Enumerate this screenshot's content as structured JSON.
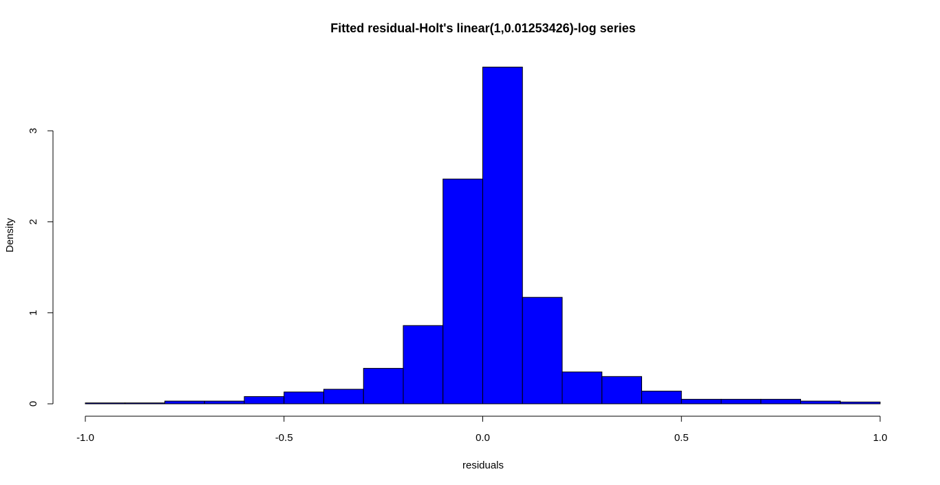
{
  "chart_data": {
    "type": "bar",
    "title": "Fitted residual-Holt's linear(1,0.01253426)-log series",
    "xlabel": "residuals",
    "ylabel": "Density",
    "xlim": [
      -1.0,
      1.0
    ],
    "ylim": [
      0,
      3.7
    ],
    "x_ticks": [
      -1.0,
      -0.5,
      0.0,
      0.5,
      1.0
    ],
    "x_tick_labels": [
      "-1.0",
      "-0.5",
      "0.0",
      "0.5",
      "1.0"
    ],
    "y_ticks": [
      0,
      1,
      2,
      3
    ],
    "y_tick_labels": [
      "0",
      "1",
      "2",
      "3"
    ],
    "bin_edges": [
      -1.0,
      -0.9,
      -0.8,
      -0.7,
      -0.6,
      -0.5,
      -0.4,
      -0.3,
      -0.2,
      -0.1,
      0.0,
      0.1,
      0.2,
      0.3,
      0.4,
      0.5,
      0.6,
      0.7,
      0.8,
      0.9,
      1.0
    ],
    "values": [
      0.01,
      0.01,
      0.03,
      0.03,
      0.08,
      0.13,
      0.16,
      0.39,
      0.86,
      2.47,
      3.7,
      1.17,
      0.35,
      0.3,
      0.14,
      0.05,
      0.05,
      0.05,
      0.03,
      0.02
    ],
    "grid": false,
    "bar_color": "#0000ff",
    "border_color": "#000000"
  }
}
